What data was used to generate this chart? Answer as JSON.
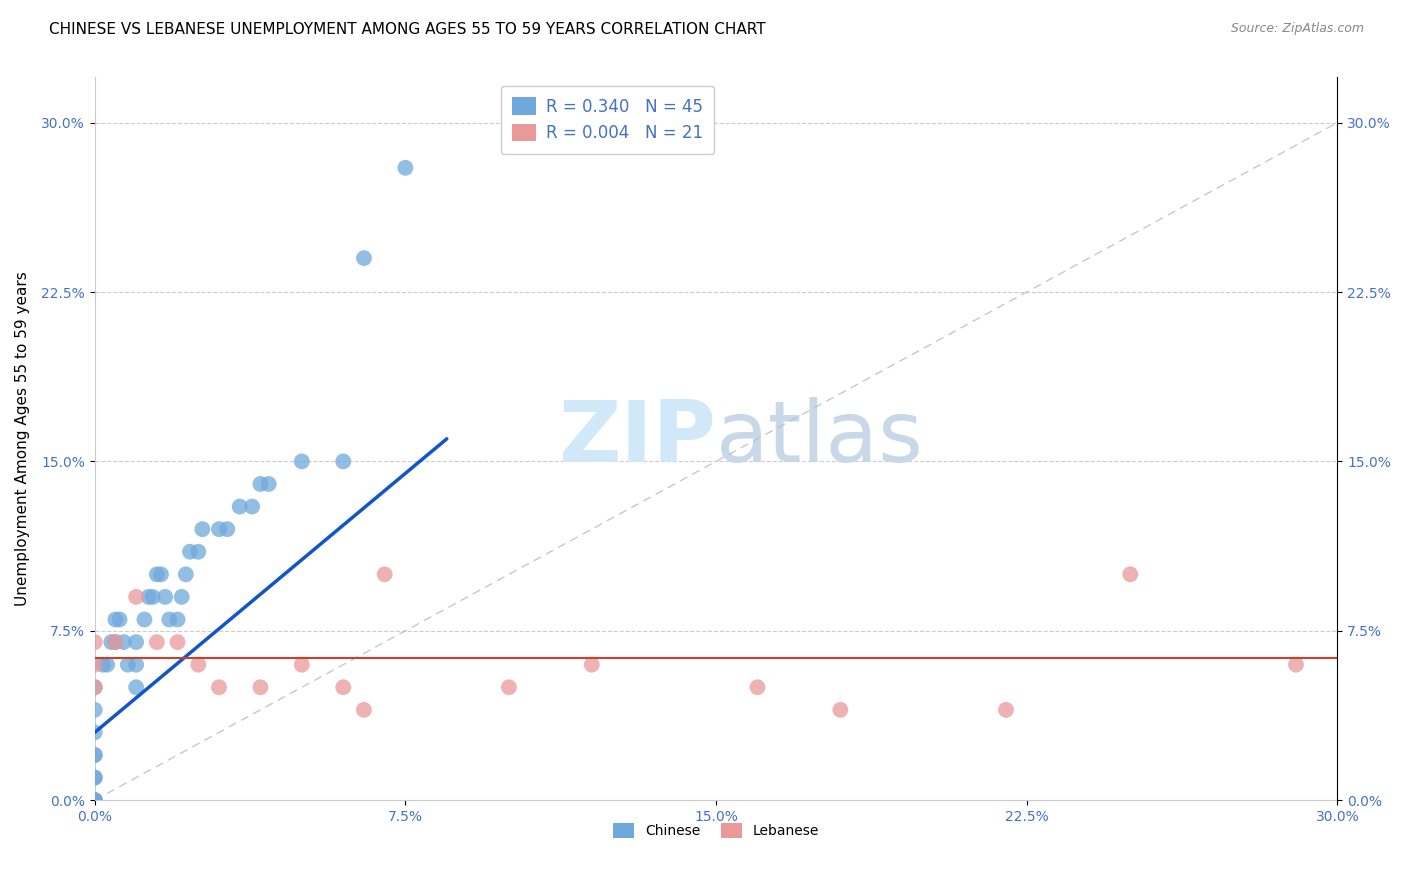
{
  "title": "CHINESE VS LEBANESE UNEMPLOYMENT AMONG AGES 55 TO 59 YEARS CORRELATION CHART",
  "source": "Source: ZipAtlas.com",
  "ylabel": "Unemployment Among Ages 55 to 59 years",
  "xlim": [
    0.0,
    0.3
  ],
  "ylim": [
    0.0,
    0.32
  ],
  "xticks": [
    0.0,
    0.075,
    0.15,
    0.225,
    0.3
  ],
  "xtick_labels": [
    "0.0%",
    "7.5%",
    "15.0%",
    "22.5%",
    "30.0%"
  ],
  "yticks": [
    0.0,
    0.075,
    0.15,
    0.225,
    0.3
  ],
  "ytick_labels": [
    "0.0%",
    "7.5%",
    "15.0%",
    "22.5%",
    "30.0%"
  ],
  "chinese_color": "#6fa8dc",
  "lebanese_color": "#ea9999",
  "trendline_chinese_color": "#1155cc",
  "trendline_lebanese_color": "#cc4125",
  "R_chinese": 0.34,
  "N_chinese": 45,
  "R_lebanese": 0.004,
  "N_lebanese": 21,
  "chinese_x": [
    0.0,
    0.0,
    0.0,
    0.0,
    0.0,
    0.0,
    0.0,
    0.0,
    0.0,
    0.0,
    0.0,
    0.002,
    0.003,
    0.004,
    0.005,
    0.005,
    0.006,
    0.007,
    0.008,
    0.01,
    0.01,
    0.01,
    0.012,
    0.013,
    0.014,
    0.015,
    0.016,
    0.017,
    0.018,
    0.02,
    0.021,
    0.022,
    0.023,
    0.025,
    0.026,
    0.03,
    0.032,
    0.035,
    0.038,
    0.04,
    0.042,
    0.05,
    0.06,
    0.065,
    0.075
  ],
  "chinese_y": [
    0.0,
    0.0,
    0.0,
    0.0,
    0.01,
    0.01,
    0.02,
    0.02,
    0.03,
    0.04,
    0.05,
    0.06,
    0.06,
    0.07,
    0.07,
    0.08,
    0.08,
    0.07,
    0.06,
    0.05,
    0.06,
    0.07,
    0.08,
    0.09,
    0.09,
    0.1,
    0.1,
    0.09,
    0.08,
    0.08,
    0.09,
    0.1,
    0.11,
    0.11,
    0.12,
    0.12,
    0.12,
    0.13,
    0.13,
    0.14,
    0.14,
    0.15,
    0.15,
    0.24,
    0.28
  ],
  "lebanese_x": [
    0.0,
    0.0,
    0.0,
    0.005,
    0.01,
    0.015,
    0.02,
    0.025,
    0.03,
    0.04,
    0.05,
    0.06,
    0.065,
    0.07,
    0.1,
    0.12,
    0.16,
    0.18,
    0.22,
    0.25,
    0.29
  ],
  "lebanese_y": [
    0.05,
    0.06,
    0.07,
    0.07,
    0.09,
    0.07,
    0.07,
    0.06,
    0.05,
    0.05,
    0.06,
    0.05,
    0.04,
    0.1,
    0.05,
    0.06,
    0.05,
    0.04,
    0.04,
    0.1,
    0.06
  ],
  "background_color": "#ffffff",
  "grid_color": "#cccccc",
  "watermark_color": "#d0e8f8",
  "title_fontsize": 11,
  "axis_label_fontsize": 11,
  "tick_label_color": "#4472c4",
  "tick_label_fontsize": 10,
  "legend_label_color": "#4472c4",
  "legend_fontsize": 12
}
